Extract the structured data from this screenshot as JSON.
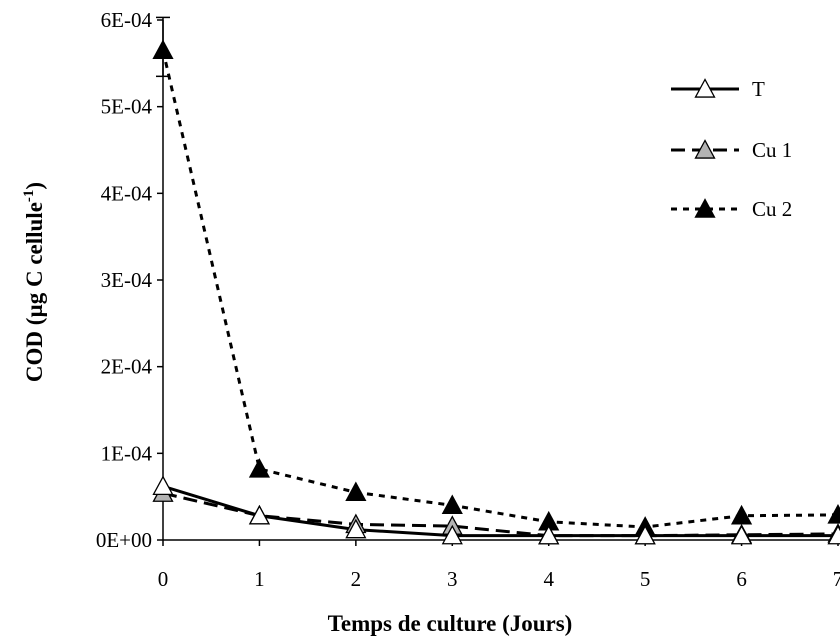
{
  "chart_data": {
    "type": "line",
    "title": "",
    "xlabel": "Temps de culture (Jours)",
    "ylabel_main": "COD (µg C cellule",
    "ylabel_sup": "-1",
    "ylabel_close": ")",
    "x": [
      0,
      1,
      2,
      3,
      4,
      5,
      6,
      7
    ],
    "x_tick_labels": [
      "0",
      "1",
      "2",
      "3",
      "4",
      "5",
      "6",
      "7"
    ],
    "y_tick_values": [
      0,
      0.0001,
      0.0002,
      0.0003,
      0.0004,
      0.0005,
      0.0006
    ],
    "y_tick_labels": [
      "0E+00",
      "1E-04",
      "2E-04",
      "3E-04",
      "4E-04",
      "5E-04",
      "6E-04"
    ],
    "xlim": [
      0,
      7
    ],
    "ylim": [
      0,
      0.0006
    ],
    "grid": false,
    "legend_position": "top-right",
    "series": [
      {
        "name": "T",
        "line_style": "solid",
        "marker_fill": "#ffffff",
        "values": [
          6.2e-05,
          2.8e-05,
          1.2e-05,
          5e-06,
          5e-06,
          5e-06,
          5e-06,
          5e-06
        ]
      },
      {
        "name": "Cu 1",
        "line_style": "long-dash",
        "marker_fill": "#b3b3b3",
        "values": [
          5.4e-05,
          2.8e-05,
          1.8e-05,
          1.6e-05,
          5e-06,
          5e-06,
          6e-06,
          7e-06
        ]
      },
      {
        "name": "Cu 2",
        "line_style": "short-dash",
        "marker_fill": "#000000",
        "values": [
          0.000565,
          8.2e-05,
          5.5e-05,
          4e-05,
          2.1e-05,
          1.5e-05,
          2.8e-05,
          2.9e-05
        ],
        "error_bar_x0": [
          0.000535,
          0.000603
        ]
      }
    ]
  }
}
